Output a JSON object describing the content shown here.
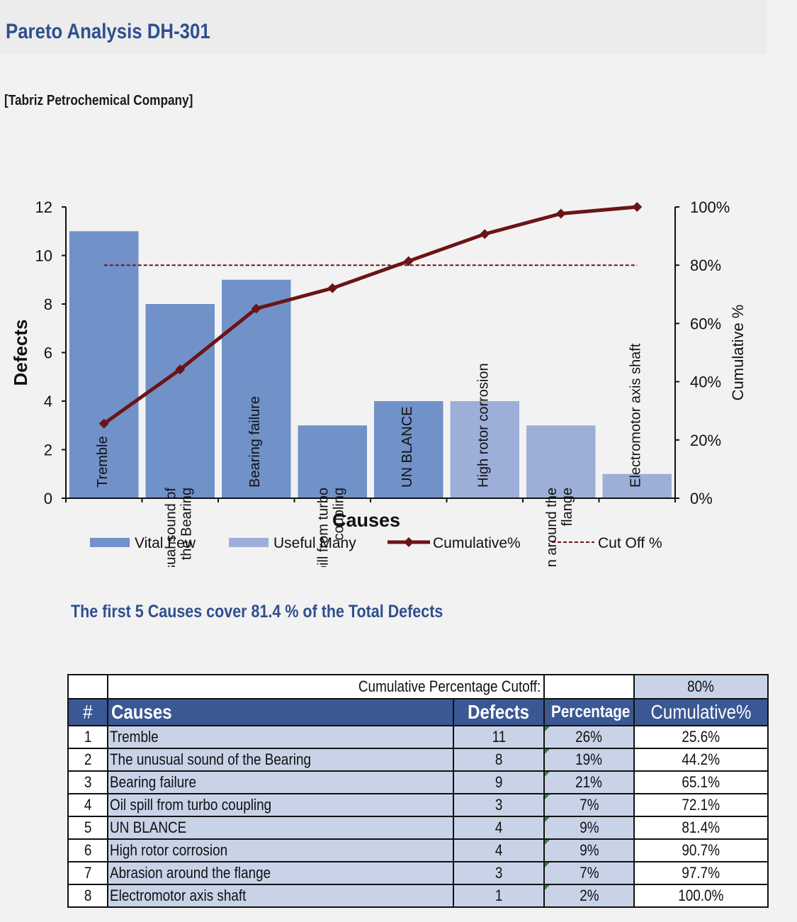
{
  "page": {
    "title": "Pareto Analysis DH-301",
    "subtitle": "[Tabriz Petrochemical Company]",
    "summary": "The first 5 Causes cover 81.4 % of the Total Defects"
  },
  "colors": {
    "vital": "#7191c9",
    "useful": "#9dafd9",
    "line": "#6b1416",
    "title": "#2f4f8f"
  },
  "chart_data": {
    "type": "bar",
    "xlabel": "Causes",
    "ylabel": "Defects",
    "y2label": "Cumulative %",
    "ylim": [
      0,
      12
    ],
    "yticks": [
      "0",
      "2",
      "4",
      "6",
      "8",
      "10",
      "12"
    ],
    "y2lim": [
      0,
      100
    ],
    "y2ticks": [
      "0%",
      "20%",
      "40%",
      "60%",
      "80%",
      "100%"
    ],
    "categories": [
      "Tremble",
      "The unusual sound of the Bearing",
      "Bearing failure",
      "Oil spill from turbo coupling",
      "UN BLANCE",
      "High rotor corrosion",
      "Abrasion around the flange",
      "Electromotor axis shaft"
    ],
    "category_lines": [
      [
        "Tremble"
      ],
      [
        "The unusual sound of",
        "the Bearing"
      ],
      [
        "Bearing failure"
      ],
      [
        "Oil spill from turbo",
        "coupling"
      ],
      [
        "UN BLANCE"
      ],
      [
        "High rotor corrosion"
      ],
      [
        "Abrasion around the",
        "flange"
      ],
      [
        "Electromotor axis shaft"
      ]
    ],
    "series": [
      {
        "name": "Vital Few",
        "type": "bar",
        "values": [
          11,
          8,
          9,
          3,
          4,
          null,
          null,
          null
        ]
      },
      {
        "name": "Useful Many",
        "type": "bar",
        "values": [
          null,
          null,
          null,
          null,
          null,
          4,
          3,
          1
        ]
      },
      {
        "name": "Cumulative%",
        "type": "line",
        "axis": "right",
        "values": [
          25.6,
          44.2,
          65.1,
          72.1,
          81.4,
          90.7,
          97.7,
          100.0
        ]
      },
      {
        "name": "Cut Off %",
        "type": "line",
        "style": "dashed",
        "axis": "right",
        "values": [
          80,
          80,
          80,
          80,
          80,
          80,
          80,
          80
        ]
      }
    ],
    "legend": [
      "Vital Few",
      "Useful Many",
      "Cumulative%",
      "Cut Off %"
    ]
  },
  "table": {
    "cutoff_label": "Cumulative Percentage Cutoff:",
    "cutoff_value": "80%",
    "headers": {
      "num": "#",
      "cause": "Causes",
      "defects": "Defects",
      "percentage": "Percentage",
      "cumulative": "Cumulative%"
    },
    "rows": [
      {
        "num": "1",
        "cause": "Tremble",
        "defects": "11",
        "percentage": "26%",
        "cumulative": "25.6%"
      },
      {
        "num": "2",
        "cause": "The unusual sound of the Bearing",
        "defects": "8",
        "percentage": "19%",
        "cumulative": "44.2%"
      },
      {
        "num": "3",
        "cause": "Bearing failure",
        "defects": "9",
        "percentage": "21%",
        "cumulative": "65.1%"
      },
      {
        "num": "4",
        "cause": "Oil spill from turbo coupling",
        "defects": "3",
        "percentage": "7%",
        "cumulative": "72.1%"
      },
      {
        "num": "5",
        "cause": "UN BLANCE",
        "defects": "4",
        "percentage": "9%",
        "cumulative": "81.4%"
      },
      {
        "num": "6",
        "cause": "High rotor corrosion",
        "defects": "4",
        "percentage": "9%",
        "cumulative": "90.7%"
      },
      {
        "num": "7",
        "cause": "Abrasion around the flange",
        "defects": "3",
        "percentage": "7%",
        "cumulative": "97.7%"
      },
      {
        "num": "8",
        "cause": "Electromotor axis shaft",
        "defects": "1",
        "percentage": "2%",
        "cumulative": "100.0%"
      }
    ]
  }
}
